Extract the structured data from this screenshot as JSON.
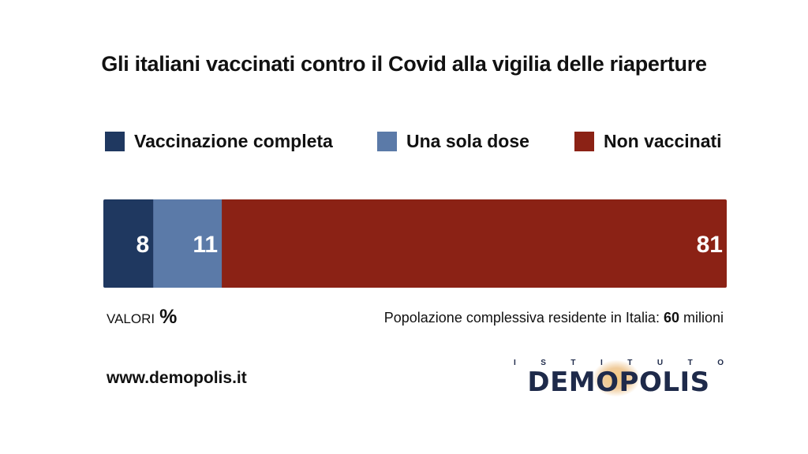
{
  "chart_data": {
    "type": "bar",
    "orientation": "horizontal-stacked-100",
    "title": "Gli italiani vaccinati contro il Covid alla vigilia delle riaperture",
    "series": [
      {
        "name": "Vaccinazione completa",
        "value": 8,
        "color": "#1f3860"
      },
      {
        "name": "Una sola dose",
        "value": 11,
        "color": "#5b7aa8"
      },
      {
        "name": "Non vaccinati",
        "value": 81,
        "color": "#8b2215"
      }
    ],
    "unit_label": "VALORI",
    "unit_symbol": "%",
    "xlim": [
      0,
      100
    ],
    "legend_position": "top"
  },
  "note": {
    "text": "Popolazione complessiva residente in Italia: ",
    "value": "60",
    "suffix": " milioni"
  },
  "footer": {
    "website": "www.demopolis.it",
    "logo_top": [
      "I",
      "S",
      "T",
      "I",
      "T",
      "U",
      "T",
      "O"
    ],
    "logo_word": "DEMOPOLIS"
  }
}
